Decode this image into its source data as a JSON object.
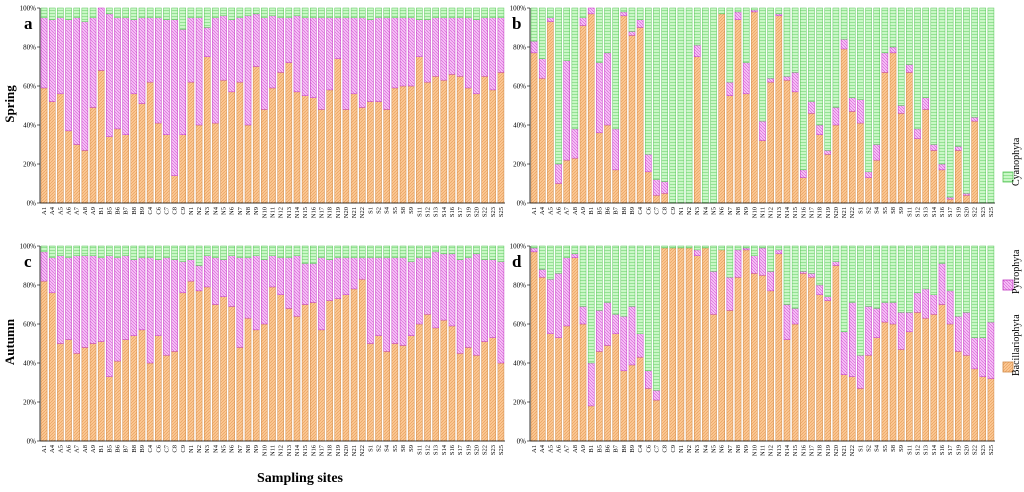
{
  "figure": {
    "x_title": "Sampling sites",
    "row_labels": [
      "Spring",
      "Autumn"
    ],
    "panel_letters": [
      "a",
      "b",
      "c",
      "d"
    ]
  },
  "legend": [
    {
      "name": "Cyanophyta",
      "color": "#b9f5b6",
      "stroke": "#58c558"
    },
    {
      "name": "Pyrrophyta",
      "color": "#f8b8f8",
      "stroke": "#c035c0"
    },
    {
      "name": "Bacillariophyta",
      "color": "#f9c08a",
      "stroke": "#d08a48"
    }
  ],
  "chart_data": [
    {
      "type": "bar",
      "stacked": true,
      "panel": "a",
      "season": "Spring",
      "ylim": [
        0,
        100
      ],
      "yticks": [
        "0%",
        "20%",
        "40%",
        "60%",
        "80%",
        "100%"
      ],
      "categories": [
        "A1",
        "A4",
        "A5",
        "A6",
        "A7",
        "A8",
        "A9",
        "B1",
        "B5",
        "B6",
        "B7",
        "B8",
        "B9",
        "C4",
        "C6",
        "C7",
        "C8",
        "C9",
        "N1",
        "N2",
        "N3",
        "N4",
        "N5",
        "N6",
        "N7",
        "N8",
        "N9",
        "N10",
        "N11",
        "N12",
        "N13",
        "N14",
        "N15",
        "N16",
        "N17",
        "N18",
        "N19",
        "N20",
        "N21",
        "N22",
        "S1",
        "S2",
        "S4",
        "S5",
        "S8",
        "S9",
        "S11",
        "S12",
        "S13",
        "S14",
        "S16",
        "S17",
        "S19",
        "S20",
        "S22",
        "S23",
        "S25"
      ],
      "series": [
        {
          "name": "Bacillariophyta",
          "values": [
            59,
            52,
            56,
            37,
            30,
            27,
            49,
            68,
            34,
            38,
            35,
            56,
            51,
            62,
            41,
            35,
            14,
            35,
            62,
            40,
            75,
            41,
            63,
            57,
            62,
            40,
            70,
            48,
            59,
            67,
            72,
            57,
            55,
            54,
            48,
            58,
            74,
            48,
            56,
            49,
            52,
            52,
            48,
            59,
            60,
            60,
            75,
            62,
            65,
            63,
            66,
            65,
            59,
            56,
            65,
            58,
            67
          ]
        },
        {
          "name": "Pyrrophyta",
          "values": [
            36,
            42,
            39,
            57,
            65,
            66,
            46,
            32,
            63,
            57,
            60,
            38,
            44,
            33,
            54,
            59,
            80,
            54,
            33,
            55,
            15,
            54,
            33,
            37,
            33,
            56,
            27,
            47,
            37,
            28,
            23,
            39,
            40,
            41,
            47,
            37,
            21,
            47,
            39,
            46,
            42,
            43,
            47,
            36,
            35,
            35,
            19,
            32,
            30,
            32,
            29,
            30,
            36,
            38,
            30,
            37,
            28
          ]
        },
        {
          "name": "Cyanophyta",
          "values": [
            5,
            6,
            5,
            6,
            5,
            7,
            5,
            0,
            3,
            5,
            5,
            6,
            5,
            5,
            5,
            6,
            6,
            11,
            5,
            5,
            10,
            5,
            4,
            6,
            5,
            4,
            3,
            5,
            4,
            5,
            5,
            4,
            5,
            5,
            5,
            5,
            5,
            5,
            5,
            5,
            6,
            5,
            5,
            5,
            5,
            5,
            6,
            6,
            5,
            5,
            5,
            5,
            5,
            6,
            5,
            5,
            5
          ]
        }
      ]
    },
    {
      "type": "bar",
      "stacked": true,
      "panel": "b",
      "season": "Spring",
      "ylim": [
        0,
        100
      ],
      "yticks": [
        "0%",
        "20%",
        "40%",
        "60%",
        "80%",
        "100%"
      ],
      "categories": [
        "A1",
        "A4",
        "A5",
        "A6",
        "A7",
        "A8",
        "A9",
        "B1",
        "B5",
        "B6",
        "B7",
        "B8",
        "B9",
        "C4",
        "C6",
        "C7",
        "C8",
        "C9",
        "N1",
        "N2",
        "N3",
        "N4",
        "N5",
        "N6",
        "N7",
        "N8",
        "N9",
        "N10",
        "N11",
        "N12",
        "N13",
        "N14",
        "N15",
        "N16",
        "N17",
        "N18",
        "N19",
        "N20",
        "N21",
        "N22",
        "S1",
        "S2",
        "S4",
        "S5",
        "S8",
        "S9",
        "S11",
        "S12",
        "S13",
        "S14",
        "S16",
        "S17",
        "S19",
        "S20",
        "S22",
        "S23",
        "S25"
      ],
      "series": [
        {
          "name": "Bacillariophyta",
          "values": [
            77,
            64,
            93,
            10,
            22,
            23,
            91,
            97,
            36,
            40,
            17,
            96,
            86,
            90,
            16,
            4,
            5,
            0,
            0,
            0,
            75,
            0,
            0,
            97,
            55,
            94,
            56,
            98,
            32,
            62,
            96,
            63,
            57,
            13,
            46,
            35,
            25,
            40,
            79,
            47,
            41,
            13,
            22,
            67,
            77,
            46,
            67,
            33,
            48,
            27,
            17,
            2,
            27,
            4,
            42,
            0,
            0
          ]
        },
        {
          "name": "Pyrrophyta",
          "values": [
            6,
            10,
            2,
            10,
            51,
            15,
            4,
            3,
            36,
            37,
            21,
            2,
            2,
            4,
            9,
            8,
            6,
            0,
            0,
            0,
            6,
            0,
            0,
            0,
            7,
            4,
            16,
            1,
            10,
            2,
            1,
            2,
            10,
            4,
            6,
            5,
            2,
            9,
            5,
            7,
            12,
            3,
            8,
            10,
            3,
            4,
            4,
            5,
            6,
            3,
            3,
            1,
            2,
            1,
            2,
            0,
            0
          ]
        },
        {
          "name": "Cyanophyta",
          "values": [
            17,
            26,
            5,
            80,
            27,
            62,
            5,
            0,
            28,
            23,
            62,
            2,
            12,
            6,
            75,
            88,
            89,
            100,
            100,
            100,
            19,
            100,
            100,
            3,
            38,
            2,
            28,
            1,
            58,
            36,
            3,
            35,
            33,
            83,
            48,
            60,
            73,
            51,
            16,
            46,
            47,
            84,
            70,
            23,
            20,
            50,
            29,
            62,
            46,
            70,
            80,
            97,
            71,
            95,
            56,
            100,
            100
          ]
        }
      ]
    },
    {
      "type": "bar",
      "stacked": true,
      "panel": "c",
      "season": "Autumn",
      "ylim": [
        0,
        100
      ],
      "yticks": [
        "0%",
        "20%",
        "40%",
        "60%",
        "80%",
        "100%"
      ],
      "categories": [
        "A1",
        "A4",
        "A5",
        "A6",
        "A7",
        "A8",
        "A9",
        "B1",
        "B5",
        "B6",
        "B7",
        "B8",
        "B9",
        "C4",
        "C6",
        "C7",
        "C8",
        "C9",
        "N1",
        "N2",
        "N3",
        "N4",
        "N5",
        "N6",
        "N7",
        "N8",
        "N9",
        "N10",
        "N11",
        "N12",
        "N13",
        "N14",
        "N15",
        "N16",
        "N17",
        "N18",
        "N19",
        "N20",
        "N21",
        "N22",
        "S1",
        "S2",
        "S4",
        "S5",
        "S8",
        "S9",
        "S11",
        "S12",
        "S13",
        "S14",
        "S16",
        "S17",
        "S19",
        "S20",
        "S22",
        "S23",
        "S25"
      ],
      "series": [
        {
          "name": "Bacillariophyta",
          "values": [
            82,
            76,
            50,
            52,
            45,
            48,
            50,
            51,
            33,
            41,
            52,
            54,
            57,
            40,
            54,
            44,
            46,
            76,
            82,
            77,
            79,
            70,
            74,
            69,
            48,
            63,
            57,
            60,
            79,
            75,
            68,
            64,
            70,
            71,
            57,
            72,
            73,
            75,
            78,
            83,
            50,
            54,
            46,
            50,
            49,
            54,
            60,
            65,
            58,
            62,
            59,
            45,
            48,
            44,
            51,
            53,
            40
          ]
        },
        {
          "name": "Pyrrophyta",
          "values": [
            15,
            18,
            45,
            42,
            50,
            47,
            45,
            43,
            62,
            53,
            43,
            39,
            37,
            54,
            39,
            50,
            47,
            16,
            11,
            13,
            16,
            24,
            19,
            26,
            46,
            31,
            38,
            33,
            16,
            19,
            26,
            31,
            21,
            20,
            37,
            21,
            21,
            19,
            16,
            11,
            44,
            40,
            48,
            44,
            45,
            38,
            34,
            29,
            39,
            34,
            37,
            48,
            46,
            52,
            42,
            40,
            52
          ]
        },
        {
          "name": "Cyanophyta",
          "values": [
            3,
            6,
            5,
            6,
            5,
            5,
            5,
            6,
            5,
            6,
            5,
            7,
            6,
            6,
            7,
            6,
            7,
            8,
            7,
            10,
            5,
            6,
            7,
            5,
            6,
            6,
            5,
            7,
            5,
            6,
            6,
            5,
            9,
            9,
            6,
            7,
            6,
            6,
            6,
            6,
            6,
            6,
            6,
            6,
            6,
            8,
            6,
            6,
            3,
            4,
            4,
            7,
            6,
            4,
            7,
            7,
            8
          ]
        }
      ]
    },
    {
      "type": "bar",
      "stacked": true,
      "panel": "d",
      "season": "Autumn",
      "ylim": [
        0,
        100
      ],
      "yticks": [
        "0%",
        "20%",
        "40%",
        "60%",
        "80%",
        "100%"
      ],
      "categories": [
        "A1",
        "A4",
        "A5",
        "A6",
        "A7",
        "A8",
        "A9",
        "B1",
        "B5",
        "B6",
        "B7",
        "B8",
        "B9",
        "C4",
        "C6",
        "C7",
        "C8",
        "C9",
        "N1",
        "N2",
        "N3",
        "N4",
        "N5",
        "N6",
        "N7",
        "N8",
        "N9",
        "N10",
        "N11",
        "N12",
        "N13",
        "N14",
        "N15",
        "N16",
        "N17",
        "N18",
        "N19",
        "N20",
        "N21",
        "N22",
        "S1",
        "S2",
        "S4",
        "S5",
        "S8",
        "S9",
        "S11",
        "S12",
        "S13",
        "S14",
        "S16",
        "S17",
        "S19",
        "S20",
        "S22",
        "S23",
        "S25"
      ],
      "series": [
        {
          "name": "Bacillariophyta",
          "values": [
            97,
            84,
            55,
            53,
            59,
            94,
            60,
            18,
            46,
            49,
            55,
            36,
            39,
            43,
            27,
            21,
            99,
            99,
            99,
            99,
            95,
            99,
            65,
            98,
            67,
            84,
            98,
            86,
            85,
            77,
            96,
            52,
            60,
            86,
            84,
            75,
            72,
            90,
            34,
            33,
            27,
            44,
            53,
            61,
            60,
            47,
            56,
            66,
            63,
            65,
            70,
            60,
            46,
            44,
            37,
            33,
            32
          ]
        },
        {
          "name": "Pyrrophyta",
          "values": [
            2,
            4,
            28,
            33,
            35,
            2,
            9,
            22,
            21,
            22,
            10,
            28,
            30,
            12,
            9,
            5,
            0,
            0,
            0,
            0,
            3,
            0,
            22,
            0,
            17,
            14,
            1,
            9,
            14,
            10,
            2,
            18,
            8,
            1,
            2,
            5,
            2,
            2,
            22,
            38,
            17,
            25,
            15,
            10,
            11,
            19,
            10,
            10,
            15,
            10,
            21,
            17,
            18,
            22,
            16,
            20,
            29
          ]
        },
        {
          "name": "Cyanophyta",
          "values": [
            1,
            12,
            17,
            14,
            6,
            4,
            31,
            60,
            33,
            29,
            35,
            36,
            31,
            45,
            64,
            74,
            1,
            1,
            1,
            1,
            2,
            1,
            13,
            2,
            16,
            2,
            1,
            5,
            1,
            13,
            2,
            30,
            32,
            13,
            14,
            20,
            26,
            8,
            44,
            29,
            56,
            31,
            32,
            29,
            29,
            34,
            34,
            24,
            22,
            25,
            9,
            23,
            36,
            34,
            47,
            47,
            39
          ]
        }
      ]
    }
  ]
}
